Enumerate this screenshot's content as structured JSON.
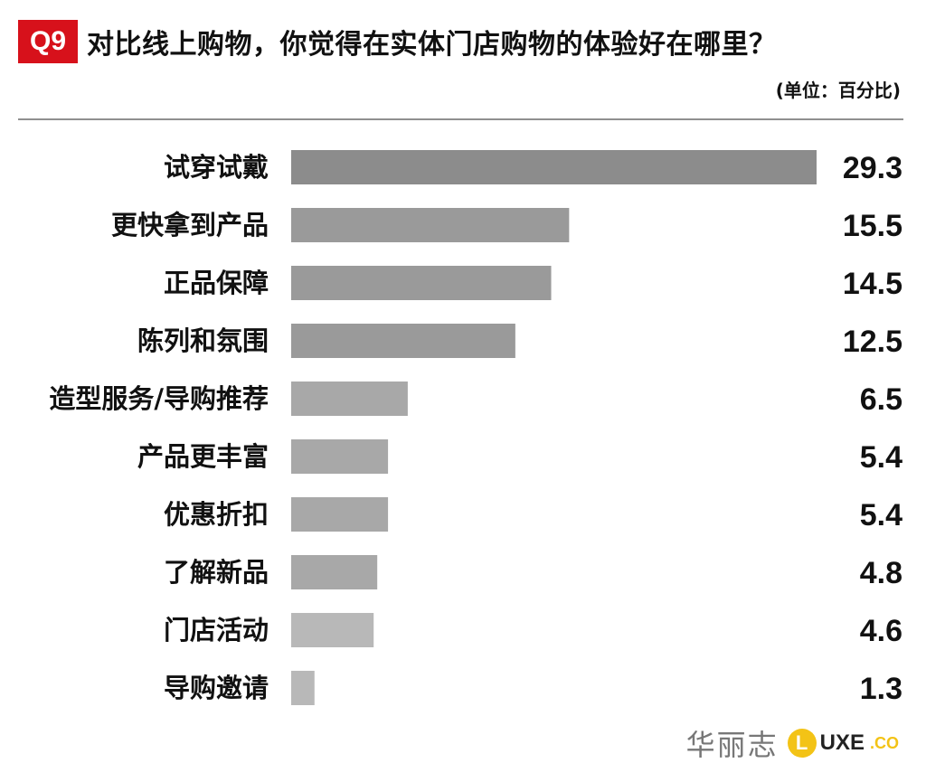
{
  "header": {
    "badge": "Q9",
    "title": "对比线上购物，你觉得在实体门店购物的体验好在哪里？",
    "unit": "(单位：百分比)"
  },
  "chart_data": {
    "type": "bar",
    "orientation": "horizontal",
    "title": "对比线上购物，你觉得在实体门店购物的体验好在哪里？",
    "subtitle": "(单位：百分比)",
    "categories": [
      "试穿试戴",
      "更快拿到产品",
      "正品保障",
      "陈列和氛围",
      "造型服务/导购推荐",
      "产品更丰富",
      "优惠折扣",
      "了解新品",
      "门店活动",
      "导购邀请"
    ],
    "values": [
      29.3,
      15.5,
      14.5,
      12.5,
      6.5,
      5.4,
      5.4,
      4.8,
      4.6,
      1.3
    ],
    "value_labels": [
      "29.3",
      "15.5",
      "14.5",
      "12.5",
      "6.5",
      "5.4",
      "5.4",
      "4.8",
      "4.6",
      "1.3"
    ],
    "xlim": [
      0,
      29.3
    ],
    "grid": false,
    "legend": "none",
    "colors": {
      "darkest": "#8c8c8c",
      "dark": "#9a9a9a",
      "mid": "#a8a8a8",
      "light": "#b8b8b8",
      "text": "#111111"
    }
  },
  "footer": {
    "brand_cn": "华丽志",
    "logo_mark": "L",
    "logo_text": "UXE",
    "logo_suffix": ".CO"
  },
  "accent": "#d7111b"
}
